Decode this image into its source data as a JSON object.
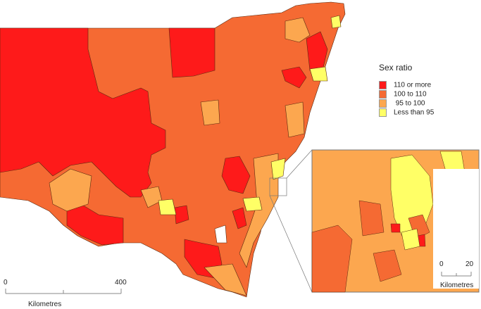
{
  "legend": {
    "title": "Sex ratio",
    "items": [
      {
        "label": "110 or more",
        "color": "#fe1a1a"
      },
      {
        "label": "100 to 110",
        "color": "#f56a33"
      },
      {
        "label": " 95 to 100",
        "color": "#fca74f"
      },
      {
        "label": "Less than 95",
        "color": "#ffff66"
      }
    ]
  },
  "scale_main": {
    "min": "0",
    "max": "400",
    "unit": "Kilometres"
  },
  "scale_inset": {
    "min": "0",
    "max": "20",
    "unit": "Kilometres"
  }
}
